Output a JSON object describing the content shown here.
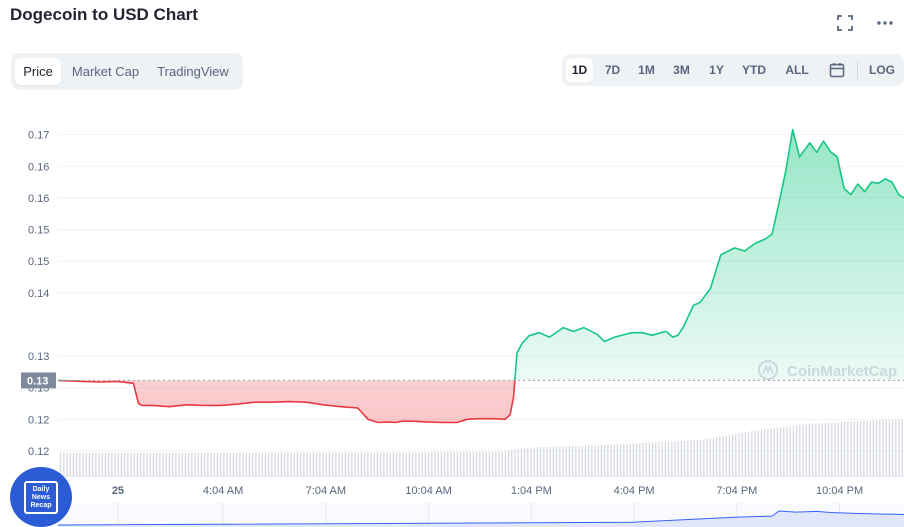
{
  "header": {
    "title": "Dogecoin to USD Chart"
  },
  "view_tabs": [
    {
      "label": "Price",
      "active": true
    },
    {
      "label": "Market Cap",
      "active": false
    },
    {
      "label": "TradingView",
      "active": false
    }
  ],
  "ranges": [
    {
      "label": "1D",
      "active": true
    },
    {
      "label": "7D",
      "active": false
    },
    {
      "label": "1M",
      "active": false
    },
    {
      "label": "3M",
      "active": false
    },
    {
      "label": "1Y",
      "active": false
    },
    {
      "label": "YTD",
      "active": false
    },
    {
      "label": "ALL",
      "active": false
    }
  ],
  "log_label": "LOG",
  "icons": {
    "fullscreen": "fullscreen-icon",
    "more": "more-options-icon",
    "calendar": "calendar-icon"
  },
  "colors": {
    "up": "#16c784",
    "down": "#ea3943",
    "accent": "#3861fb"
  },
  "watermark": "CoinMarketCap",
  "badge": {
    "lines": [
      "Daily",
      "News",
      "Recap"
    ]
  },
  "chart_data": {
    "type": "area",
    "y_tick_labels": [
      "0.17",
      "0.16",
      "0.16",
      "0.15",
      "0.15",
      "0.14",
      "0.13",
      "0.13",
      "0.12",
      "0.12"
    ],
    "y_ticks": [
      0.1725,
      0.1675,
      0.1625,
      0.1575,
      0.1525,
      0.1475,
      0.1375,
      0.1325,
      0.1275,
      0.1225
    ],
    "ylim": [
      0.1187,
      0.1775
    ],
    "reference_price": 0.13365,
    "reference_label": "0.13",
    "x_labels": [
      "25",
      "4:04 AM",
      "7:04 AM",
      "10:04 AM",
      "1:04 PM",
      "4:04 PM",
      "7:04 PM",
      "10:04 PM"
    ],
    "x_label_hours": [
      1,
      4.07,
      7.07,
      10.07,
      13.07,
      16.07,
      19.07,
      22.07
    ],
    "xlim": [
      -0.75,
      23.95
    ],
    "series": [
      {
        "x": [
          -0.75,
          0,
          0.5,
          1,
          1.45,
          1.6,
          1.7,
          2,
          2.5,
          3,
          3.5,
          4,
          4.5,
          5,
          5.5,
          6,
          6.5,
          7,
          7.5,
          8,
          8.3,
          8.6,
          8.9,
          9.1,
          9.3,
          9.6,
          10,
          10.5,
          10.9,
          11.2,
          11.5,
          12,
          12.3,
          12.45,
          12.55,
          12.65,
          12.8,
          13,
          13.3,
          13.6,
          14,
          14.3,
          14.6,
          15,
          15.2,
          15.5,
          16,
          16.3,
          16.6,
          17,
          17.2,
          17.35,
          17.5,
          17.8,
          18,
          18.3,
          18.6,
          19,
          19.3,
          19.6,
          19.9,
          20.1,
          20.3,
          20.5,
          20.7,
          20.9,
          21.2,
          21.4,
          21.6,
          21.8,
          22,
          22.2,
          22.4,
          22.6,
          22.8,
          23,
          23.2,
          23.4,
          23.6,
          23.8,
          23.95
        ],
        "y": [
          0.13365,
          0.1335,
          0.1334,
          0.1335,
          0.1332,
          0.13,
          0.1297,
          0.1297,
          0.1295,
          0.1298,
          0.1297,
          0.1297,
          0.1299,
          0.1302,
          0.1302,
          0.1303,
          0.1302,
          0.1298,
          0.1295,
          0.1293,
          0.1275,
          0.127,
          0.1271,
          0.127,
          0.1272,
          0.1272,
          0.1271,
          0.127,
          0.127,
          0.1275,
          0.1276,
          0.1276,
          0.1275,
          0.1282,
          0.131,
          0.138,
          0.1395,
          0.1407,
          0.1412,
          0.1405,
          0.142,
          0.1414,
          0.142,
          0.1409,
          0.1398,
          0.1405,
          0.1412,
          0.1412,
          0.1408,
          0.1414,
          0.1405,
          0.1408,
          0.142,
          0.1455,
          0.146,
          0.1482,
          0.1535,
          0.1546,
          0.1541,
          0.1553,
          0.156,
          0.1568,
          0.1617,
          0.1668,
          0.1733,
          0.169,
          0.1712,
          0.1697,
          0.1715,
          0.1698,
          0.169,
          0.164,
          0.163,
          0.1647,
          0.1635,
          0.165,
          0.1648,
          0.1655,
          0.165,
          0.163,
          0.1625
        ]
      }
    ],
    "volume": {
      "x": [
        0,
        3,
        6,
        9,
        12,
        13,
        15,
        18,
        19.5,
        21,
        22.5,
        23.95
      ],
      "values": [
        1.0,
        1.0,
        1.02,
        1.03,
        1.05,
        1.25,
        1.35,
        1.6,
        2.0,
        2.3,
        2.45,
        2.55
      ]
    },
    "navigator": {
      "x": [
        -0.75,
        16,
        19,
        20.1,
        20.3,
        20.8,
        21.4,
        21.8,
        22.6,
        23.95
      ],
      "y": [
        0.1335,
        0.141,
        0.155,
        0.158,
        0.172,
        0.169,
        0.171,
        0.168,
        0.165,
        0.1625
      ]
    }
  }
}
